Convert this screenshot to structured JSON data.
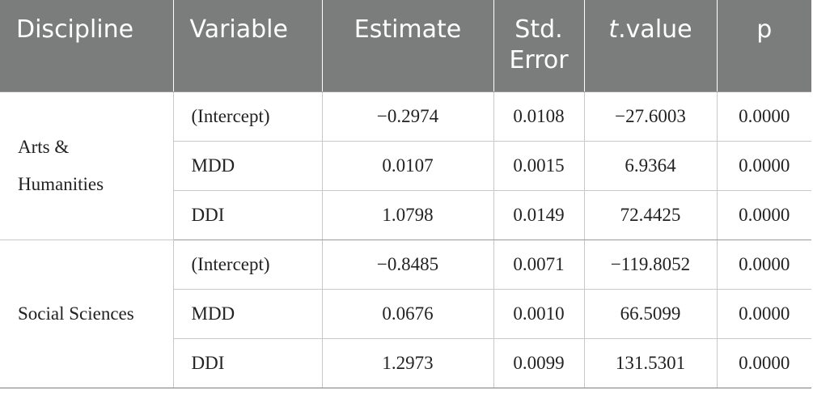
{
  "headers": {
    "discipline": "Discipline",
    "variable": "Variable",
    "estimate": "Estimate",
    "std_error_line1": "Std.",
    "std_error_line2": "Error",
    "t_value_italic": "t",
    "t_value_rest": ".value",
    "p": "p"
  },
  "groups": [
    {
      "discipline_line1": "Arts &",
      "discipline_line2": "Humanities",
      "rows": [
        {
          "variable": "(Intercept)",
          "estimate": "−0.2974",
          "std_error": "0.0108",
          "t_value": "−27.6003",
          "p": "0.0000"
        },
        {
          "variable": "MDD",
          "estimate": "0.0107",
          "std_error": "0.0015",
          "t_value": "6.9364",
          "p": "0.0000"
        },
        {
          "variable": "DDI",
          "estimate": "1.0798",
          "std_error": "0.0149",
          "t_value": "72.4425",
          "p": "0.0000"
        }
      ]
    },
    {
      "discipline_line1": "Social Sciences",
      "discipline_line2": "",
      "rows": [
        {
          "variable": "(Intercept)",
          "estimate": "−0.8485",
          "std_error": "0.0071",
          "t_value": "−119.8052",
          "p": "0.0000"
        },
        {
          "variable": "MDD",
          "estimate": "0.0676",
          "std_error": "0.0010",
          "t_value": "66.5099",
          "p": "0.0000"
        },
        {
          "variable": "DDI",
          "estimate": "1.2973",
          "std_error": "0.0099",
          "t_value": "131.5301",
          "p": "0.0000"
        }
      ]
    }
  ]
}
